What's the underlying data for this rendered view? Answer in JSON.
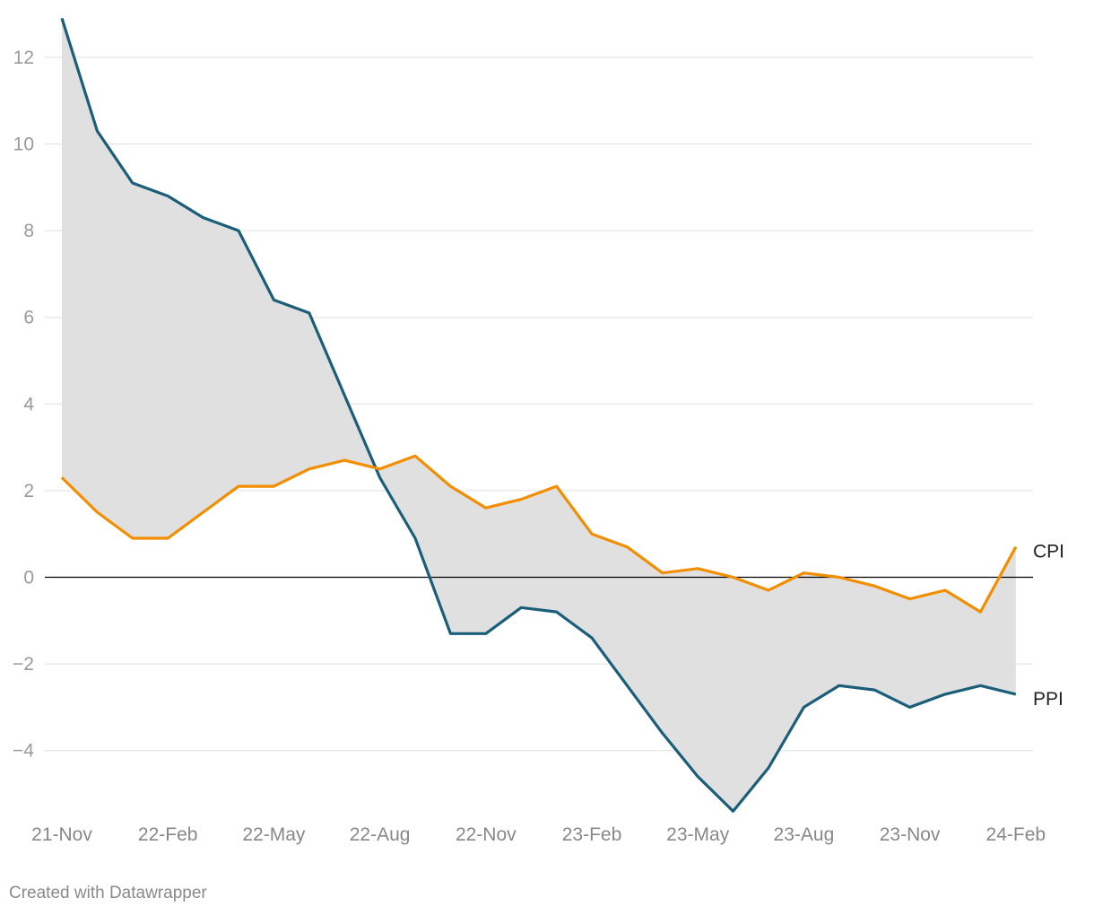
{
  "chart_data": {
    "type": "line",
    "x": [
      "21-Nov",
      "21-Dec",
      "22-Jan",
      "22-Feb",
      "22-Mar",
      "22-Apr",
      "22-May",
      "22-Jun",
      "22-Jul",
      "22-Aug",
      "22-Sep",
      "22-Oct",
      "22-Nov",
      "22-Dec",
      "23-Jan",
      "23-Feb",
      "23-Mar",
      "23-Apr",
      "23-May",
      "23-Jun",
      "23-Jul",
      "23-Aug",
      "23-Sep",
      "23-Oct",
      "23-Nov",
      "23-Dec",
      "24-Jan",
      "24-Feb"
    ],
    "x_tick_labels": [
      "21-Nov",
      "22-Feb",
      "22-May",
      "22-Aug",
      "22-Nov",
      "23-Feb",
      "23-May",
      "23-Aug",
      "23-Nov",
      "24-Feb"
    ],
    "series": [
      {
        "name": "CPI",
        "color": "#f28e00",
        "values": [
          2.3,
          1.5,
          0.9,
          0.9,
          1.5,
          2.1,
          2.1,
          2.5,
          2.7,
          2.5,
          2.8,
          2.1,
          1.6,
          1.8,
          2.1,
          1.0,
          0.7,
          0.1,
          0.2,
          0.0,
          -0.3,
          0.1,
          0.0,
          -0.2,
          -0.5,
          -0.3,
          -0.8,
          0.7
        ]
      },
      {
        "name": "PPI",
        "color": "#1b5e7a",
        "values": [
          12.9,
          10.3,
          9.1,
          8.8,
          8.3,
          8.0,
          6.4,
          6.1,
          4.2,
          2.3,
          0.9,
          -1.3,
          -1.3,
          -0.7,
          -0.8,
          -1.4,
          -2.5,
          -3.6,
          -4.6,
          -5.4,
          -4.4,
          -3.0,
          -2.5,
          -2.6,
          -3.0,
          -2.7,
          -2.5,
          -2.7
        ]
      }
    ],
    "fill_between": {
      "color": "#e0e0e0"
    },
    "y_ticks": [
      "12",
      "10",
      "8",
      "6",
      "4",
      "2",
      "0",
      "−2",
      "−4"
    ],
    "ylim": [
      -5.4,
      12.9
    ],
    "grid": true,
    "legend": "direct labels at line ends"
  },
  "footer": {
    "credit": "Created with Datawrapper"
  }
}
